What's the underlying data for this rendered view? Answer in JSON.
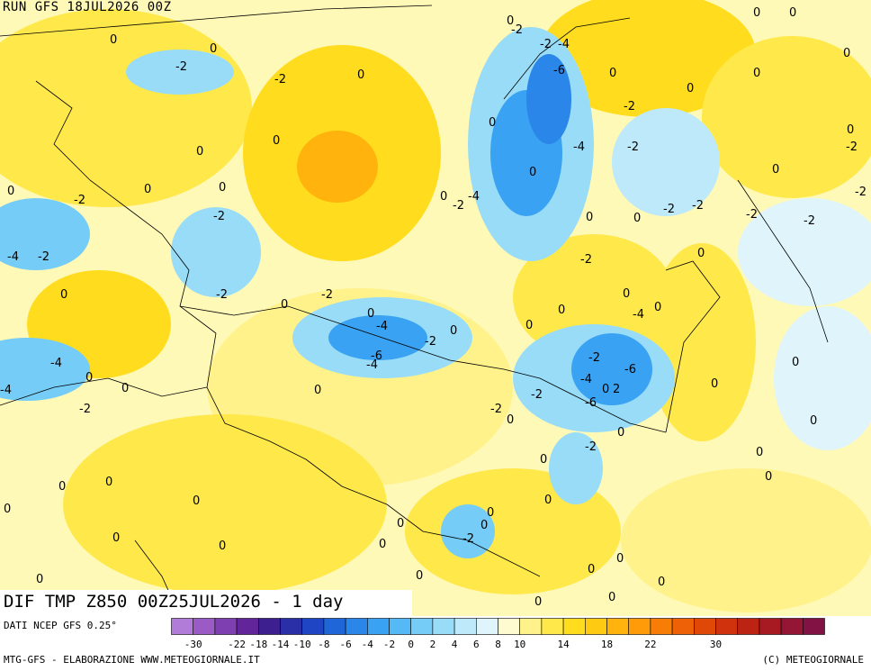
{
  "header": {
    "run_label": "RUN GFS 18JUL2026 00Z"
  },
  "title": {
    "text": "DIF TMP Z850 00Z25JUL2026 - 1 day"
  },
  "footer": {
    "source": "DATI NCEP GFS 0.25°",
    "credits_left": "MTG-GFS - ELABORAZIONE WWW.METEOGIORNALE.IT",
    "credits_right": "(C) METEOGIORNALE"
  },
  "legend": {
    "colors": [
      "#b07cd8",
      "#9a5cc4",
      "#7e3fb0",
      "#62259a",
      "#3d1f8f",
      "#2a2fa8",
      "#1f45c4",
      "#1f66d8",
      "#2a86e8",
      "#3aa2f2",
      "#55b9f5",
      "#75ccf6",
      "#98dcf8",
      "#bde9fa",
      "#dff5fb",
      "#fffbd0",
      "#fff28a",
      "#ffe84a",
      "#ffdc1e",
      "#ffca12",
      "#ffb30c",
      "#ff9a08",
      "#f77d06",
      "#ee6106",
      "#e04808",
      "#cf320d",
      "#bd2312",
      "#a81a22",
      "#951634",
      "#821243"
    ],
    "tick_labels": [
      "-30",
      "-22",
      "-18",
      "-14",
      "-10",
      "-8",
      "-6",
      "-4",
      "-2",
      "0",
      "2",
      "4",
      "6",
      "8",
      "10",
      "14",
      "18",
      "22",
      "30"
    ]
  },
  "contour_labels": [
    "0",
    "-2",
    "-4",
    "-6",
    "2"
  ]
}
